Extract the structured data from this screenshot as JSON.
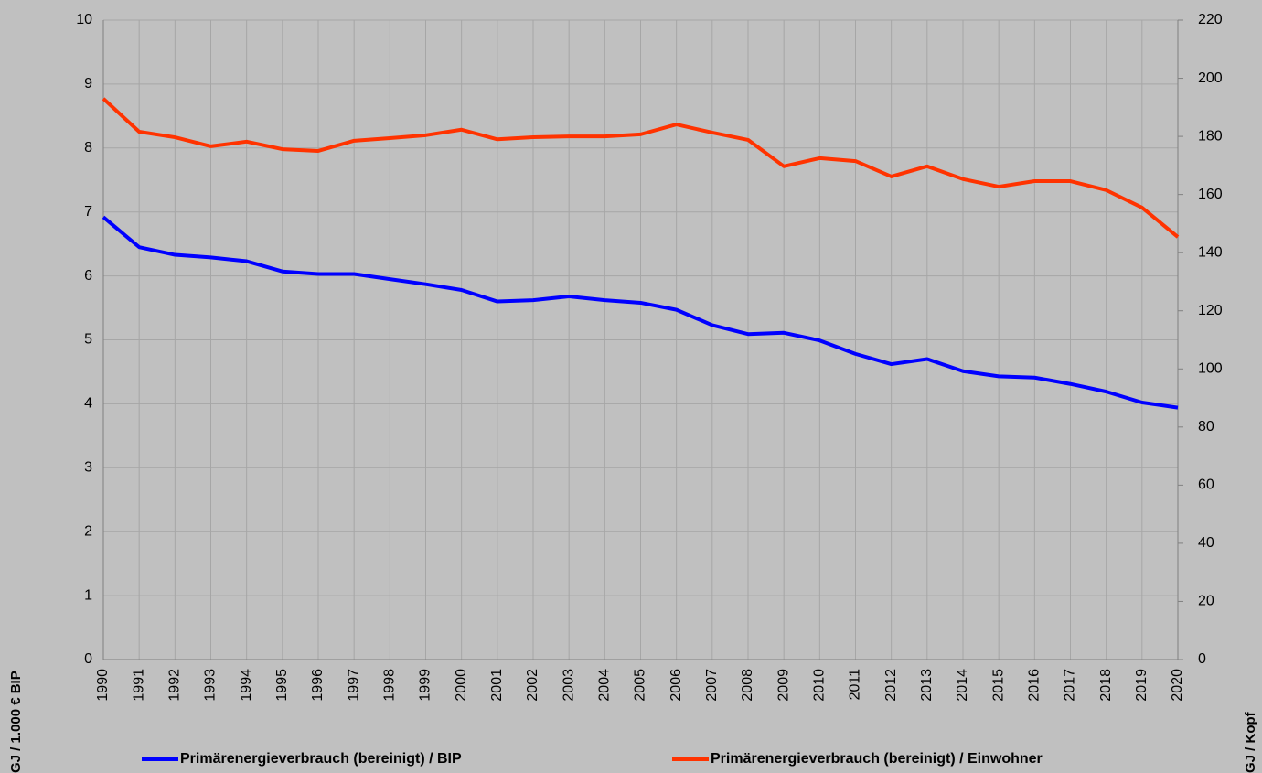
{
  "chart_data": {
    "type": "line",
    "categories": [
      "1990",
      "1991",
      "1992",
      "1993",
      "1994",
      "1995",
      "1996",
      "1997",
      "1998",
      "1999",
      "2000",
      "2001",
      "2002",
      "2003",
      "2004",
      "2005",
      "2006",
      "2007",
      "2008",
      "2009",
      "2010",
      "2011",
      "2012",
      "2013",
      "2014",
      "2015",
      "2016",
      "2017",
      "2018",
      "2019",
      "2020"
    ],
    "series": [
      {
        "name": "Primärenergieverbrauch (bereinigt) / BIP",
        "color": "#0000ff",
        "axis": "y",
        "values": [
          6.92,
          6.45,
          6.33,
          6.29,
          6.23,
          6.07,
          6.03,
          6.03,
          5.95,
          5.87,
          5.78,
          5.6,
          5.62,
          5.68,
          5.62,
          5.58,
          5.47,
          5.23,
          5.09,
          5.11,
          4.99,
          4.78,
          4.62,
          4.7,
          4.51,
          4.43,
          4.41,
          4.31,
          4.19,
          4.02,
          3.94
        ]
      },
      {
        "name": "Primärenergieverbrauch (bereinigt) / Einwohner",
        "color": "#ff3300",
        "axis": "y2",
        "values": [
          193,
          181.6,
          179.7,
          176.6,
          178.2,
          175.6,
          175,
          178.5,
          179.4,
          180.4,
          182.3,
          179,
          179.7,
          180,
          180,
          180.7,
          184.1,
          181.3,
          178.8,
          169.7,
          172.5,
          171.5,
          166.2,
          169.7,
          165.3,
          162.7,
          164.6,
          164.6,
          161.5,
          155.5,
          145.4
        ]
      }
    ],
    "ylabel": "GJ / 1.000 € BIP",
    "y2label": "GJ / Kopf",
    "ylim": [
      0,
      10
    ],
    "yticks": [
      0,
      1,
      2,
      3,
      4,
      5,
      6,
      7,
      8,
      9,
      10
    ],
    "y2lim": [
      0,
      220
    ],
    "y2ticks": [
      0,
      20,
      40,
      60,
      80,
      100,
      120,
      140,
      160,
      180,
      200,
      220
    ],
    "grid": true,
    "legend": "bottom"
  }
}
